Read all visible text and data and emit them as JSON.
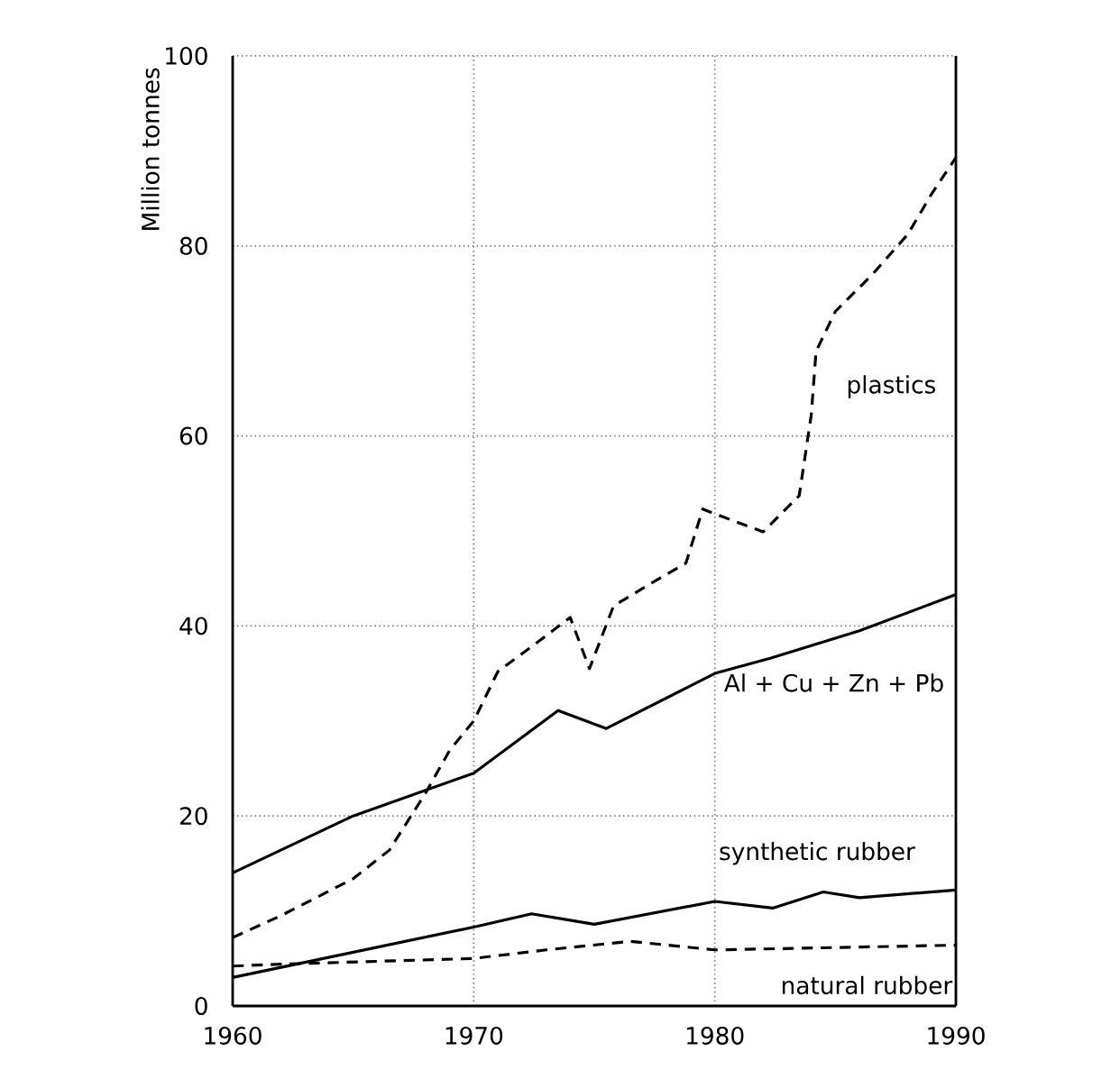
{
  "chart_data": {
    "type": "line",
    "ylabel": "Million tonnes",
    "xlim": [
      1960,
      1990
    ],
    "ylim": [
      0,
      100
    ],
    "xticks": [
      1960,
      1970,
      1980,
      1990
    ],
    "yticks": [
      0,
      20,
      40,
      60,
      80,
      100
    ],
    "grid": true,
    "series": [
      {
        "name": "plastics",
        "color": "#000000",
        "line_style": "dashed",
        "x": [
          1960,
          1962,
          1965,
          1966.5,
          1968,
          1969,
          1970,
          1971,
          1972.5,
          1974,
          1974.8,
          1975.8,
          1977.5,
          1978.8,
          1979.5,
          1980,
          1982,
          1983.5,
          1984,
          1984.2,
          1985,
          1986.5,
          1988,
          1989,
          1990
        ],
        "values": [
          7.2,
          9.5,
          13.4,
          16.4,
          22.4,
          26.9,
          30,
          35.2,
          38,
          40.9,
          35.5,
          42.1,
          44.7,
          46.6,
          52.3,
          51.8,
          49.9,
          53.7,
          62.2,
          68.9,
          73.1,
          76.9,
          81.2,
          85.5,
          89.3
        ]
      },
      {
        "name": "Al + Cu + Zn + Pb",
        "color": "#000000",
        "line_style": "solid",
        "x": [
          1960,
          1965,
          1970,
          1973.5,
          1975.5,
          1980,
          1982.3,
          1986,
          1990
        ],
        "values": [
          14,
          20,
          24.5,
          31.1,
          29.2,
          35,
          36.6,
          39.5,
          43.3
        ]
      },
      {
        "name": "synthetic rubber",
        "color": "#000000",
        "line_style": "solid",
        "x": [
          1960,
          1970,
          1972.4,
          1975,
          1980,
          1982.4,
          1984.5,
          1986,
          1990
        ],
        "values": [
          3,
          8.3,
          9.7,
          8.6,
          11,
          10.3,
          12,
          11.4,
          12.2
        ]
      },
      {
        "name": "natural rubber",
        "color": "#000000",
        "line_style": "dashed",
        "x": [
          1960,
          1962,
          1970,
          1973,
          1976.5,
          1980,
          1982,
          1990
        ],
        "values": [
          4.2,
          4.4,
          5,
          5.9,
          6.8,
          5.9,
          6,
          6.4
        ]
      }
    ]
  }
}
